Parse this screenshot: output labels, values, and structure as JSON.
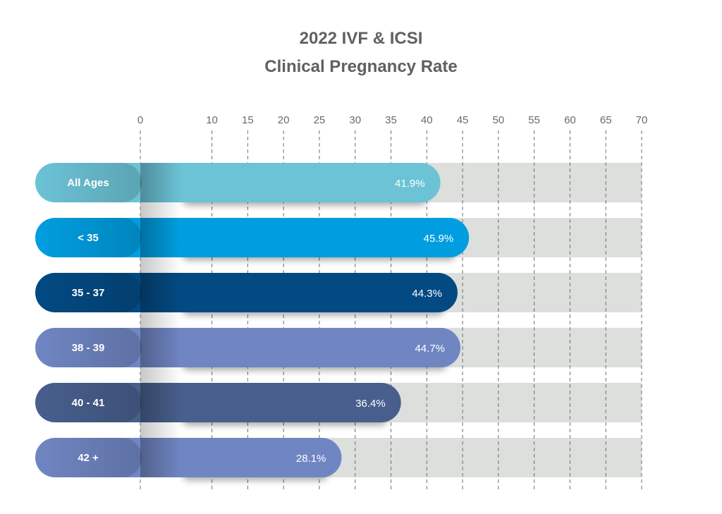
{
  "chart_data": {
    "type": "bar",
    "orientation": "horizontal",
    "title": "2022 IVF & ICSI",
    "subtitle": "Clinical Pregnancy Rate",
    "xlim": [
      0,
      70
    ],
    "ticks": [
      "0",
      "10",
      "15",
      "20",
      "25",
      "30",
      "35",
      "40",
      "45",
      "50",
      "55",
      "60",
      "65",
      "70"
    ],
    "tick_values": [
      0,
      10,
      15,
      20,
      25,
      30,
      35,
      40,
      45,
      50,
      55,
      60,
      65,
      70
    ],
    "grid": true,
    "categories": [
      "All Ages",
      "< 35",
      "35 - 37",
      "38 - 39",
      "40 - 41",
      "42 +"
    ],
    "values": [
      41.9,
      45.9,
      44.3,
      44.7,
      36.4,
      28.1
    ],
    "value_labels": [
      "41.9%",
      "45.9%",
      "44.3%",
      "44.7%",
      "36.4%",
      "28.1%"
    ],
    "colors": [
      "#6cc3d6",
      "#009ee0",
      "#034a83",
      "#7086c3",
      "#485f8d",
      "#7086c3"
    ],
    "track_color": "#dcdfdc"
  }
}
